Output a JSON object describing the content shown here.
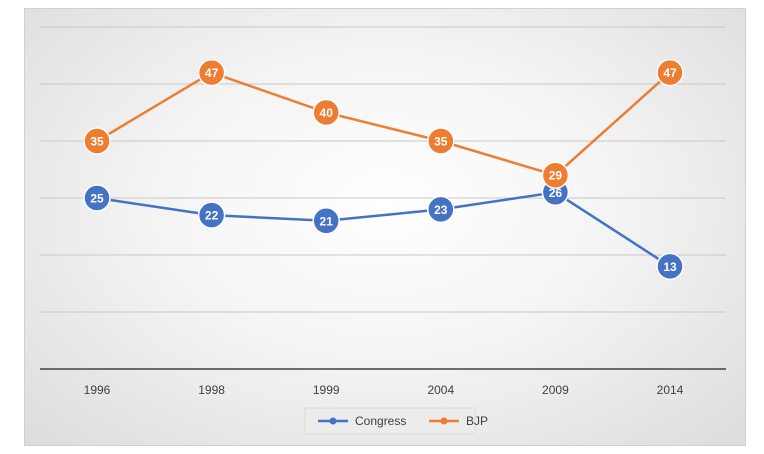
{
  "chart_data": {
    "type": "line",
    "categories": [
      "1996",
      "1998",
      "1999",
      "2004",
      "2009",
      "2014"
    ],
    "series": [
      {
        "name": "Congress",
        "values": [
          25,
          22,
          21,
          23,
          26,
          13
        ],
        "color": "#4472c4"
      },
      {
        "name": "BJP",
        "values": [
          35,
          47,
          40,
          35,
          29,
          47
        ],
        "color": "#ed7d31"
      }
    ],
    "ylim": [
      -5,
      55
    ],
    "grid": true,
    "legend_position": "bottom",
    "data_labels": true
  }
}
